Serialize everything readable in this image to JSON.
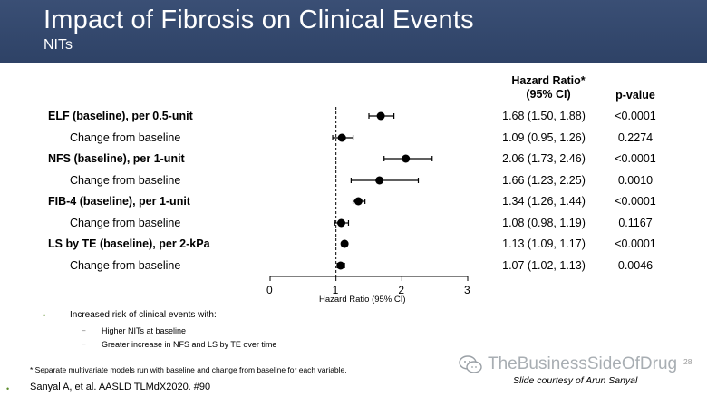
{
  "header": {
    "title": "Impact of Fibrosis on Clinical Events",
    "subtitle": "NITs"
  },
  "columns": {
    "hr_line1": "Hazard Ratio*",
    "hr_line2": "(95% CI)",
    "p_value": "p-value"
  },
  "rows": [
    {
      "label": "ELF (baseline), per 0.5-unit",
      "bold": true,
      "hr": 1.68,
      "lo": 1.5,
      "hi": 1.88,
      "hr_text": "1.68 (1.50, 1.88)",
      "p": "<0.0001"
    },
    {
      "label": "Change from baseline",
      "bold": false,
      "hr": 1.09,
      "lo": 0.95,
      "hi": 1.26,
      "hr_text": "1.09 (0.95, 1.26)",
      "p": "0.2274"
    },
    {
      "label": "NFS (baseline), per 1-unit",
      "bold": true,
      "hr": 2.06,
      "lo": 1.73,
      "hi": 2.46,
      "hr_text": "2.06 (1.73, 2.46)",
      "p": "<0.0001"
    },
    {
      "label": "Change from baseline",
      "bold": false,
      "hr": 1.66,
      "lo": 1.23,
      "hi": 2.25,
      "hr_text": "1.66 (1.23, 2.25)",
      "p": "0.0010"
    },
    {
      "label": "FIB-4 (baseline), per 1-unit",
      "bold": true,
      "hr": 1.34,
      "lo": 1.26,
      "hi": 1.44,
      "hr_text": "1.34 (1.26, 1.44)",
      "p": "<0.0001"
    },
    {
      "label": "Change from baseline",
      "bold": false,
      "hr": 1.08,
      "lo": 0.98,
      "hi": 1.19,
      "hr_text": "1.08 (0.98, 1.19)",
      "p": "0.1167"
    },
    {
      "label": "LS by TE (baseline), per 2-kPa",
      "bold": true,
      "hr": 1.13,
      "lo": 1.09,
      "hi": 1.17,
      "hr_text": "1.13 (1.09, 1.17)",
      "p": "<0.0001"
    },
    {
      "label": "Change from baseline",
      "bold": false,
      "hr": 1.07,
      "lo": 1.02,
      "hi": 1.13,
      "hr_text": "1.07 (1.02, 1.13)",
      "p": "0.0046"
    }
  ],
  "axis": {
    "title": "Hazard Ratio (95% CI)",
    "min": 0,
    "max": 3,
    "ticks": [
      "0",
      "1",
      "2",
      "3"
    ],
    "reference_line": 1
  },
  "bullets": {
    "main": "Increased risk of clinical events with:",
    "sub": [
      "Higher NITs at baseline",
      "Greater increase in NFS and LS by TE over time"
    ]
  },
  "footnote": "* Separate multivariate models run with baseline and change from baseline for each variable.",
  "citation": "Sanyal A, et al. AASLD TLMdX2020. #90",
  "courtesy": "Slide courtesy of Arun Sanyal",
  "watermark": "TheBusinessSideOfDrug",
  "page_number": "28",
  "colors": {
    "header_bg": "#34486d",
    "bullet_green": "#5b8c2a",
    "marker": "#000000"
  }
}
